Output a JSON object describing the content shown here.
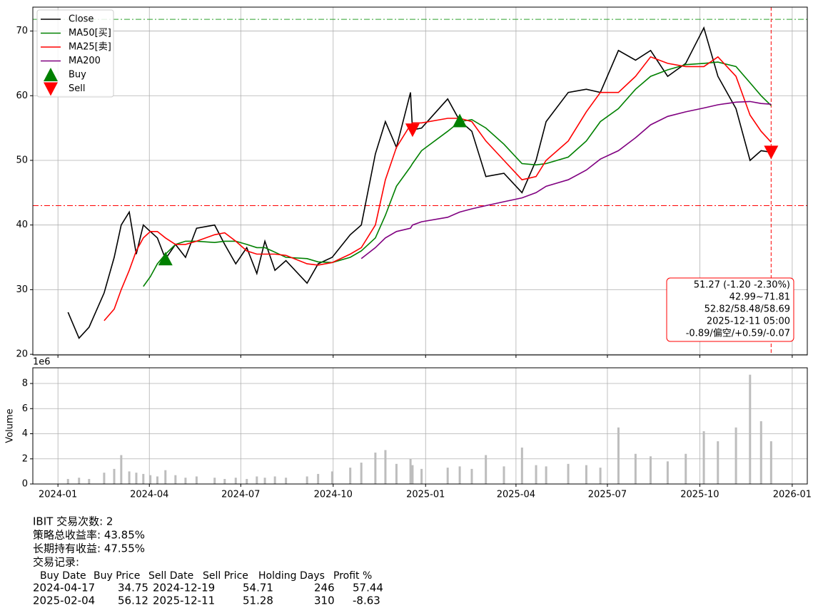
{
  "chart_data": [
    {
      "type": "line",
      "x": [
        "2024-01-11",
        "2024-01-22",
        "2024-02-01",
        "2024-02-16",
        "2024-02-26",
        "2024-03-04",
        "2024-03-12",
        "2024-03-19",
        "2024-03-26",
        "2024-04-02",
        "2024-04-09",
        "2024-04-17",
        "2024-04-27",
        "2024-05-07",
        "2024-05-18",
        "2024-06-05",
        "2024-06-15",
        "2024-06-26",
        "2024-07-07",
        "2024-07-17",
        "2024-07-25",
        "2024-08-04",
        "2024-08-15",
        "2024-09-05",
        "2024-09-16",
        "2024-09-30",
        "2024-10-18",
        "2024-10-29",
        "2024-11-12",
        "2024-11-22",
        "2024-12-03",
        "2024-12-17",
        "2024-12-19",
        "2024-12-28",
        "2025-01-23",
        "2025-02-04",
        "2025-02-16",
        "2025-03-02",
        "2025-03-20",
        "2025-04-07",
        "2025-04-21",
        "2025-05-01",
        "2025-05-23",
        "2025-06-10",
        "2025-06-24",
        "2025-07-12",
        "2025-07-29",
        "2025-08-13",
        "2025-08-30",
        "2025-09-17",
        "2025-10-05",
        "2025-10-19",
        "2025-11-06",
        "2025-11-20",
        "2025-12-01",
        "2025-12-11"
      ],
      "series": [
        {
          "name": "Close",
          "color": "#000000",
          "values": [
            26.5,
            22.5,
            24.2,
            29.5,
            35,
            40,
            42,
            35.5,
            40,
            39,
            38,
            34.75,
            37,
            35,
            39.5,
            40,
            37,
            34,
            36.5,
            32.5,
            37.5,
            33,
            34.5,
            31,
            34,
            35,
            38.5,
            40,
            51,
            56,
            52,
            60.5,
            54.71,
            55,
            59.5,
            56.12,
            54.5,
            47.5,
            48,
            45,
            50,
            56,
            60.5,
            61,
            60.5,
            67,
            65.5,
            67,
            63,
            65,
            70.5,
            63,
            58,
            50,
            51.5,
            51.27
          ]
        },
        {
          "name": "MA50[买]",
          "color": "#008000",
          "values": [
            null,
            null,
            null,
            null,
            null,
            null,
            null,
            null,
            30.5,
            32,
            34,
            35.5,
            37,
            37.5,
            37.5,
            37.3,
            37.5,
            37.5,
            37,
            36.5,
            36.5,
            35.8,
            35,
            34.8,
            34.3,
            34.2,
            35,
            36,
            38,
            41.5,
            46,
            49,
            49.5,
            51.5,
            54.5,
            56,
            56.3,
            55,
            52.5,
            49.5,
            49.3,
            49.5,
            50.5,
            53,
            56,
            58,
            61,
            63,
            64,
            64.8,
            65,
            65.2,
            64.5,
            62,
            60,
            58.48
          ]
        },
        {
          "name": "MA25[卖]",
          "color": "#ff0000",
          "values": [
            null,
            null,
            null,
            25.2,
            27,
            30,
            33,
            36,
            38,
            39,
            39,
            38,
            37,
            37,
            37.5,
            38.5,
            38.8,
            37.5,
            36,
            35.5,
            35.5,
            35.5,
            35.3,
            34,
            33.8,
            34.2,
            35.5,
            36.5,
            40,
            47,
            52,
            55.5,
            55.8,
            55.8,
            56.5,
            56.5,
            56,
            53,
            50,
            47,
            47.5,
            50,
            53,
            57.5,
            60.5,
            60.5,
            63,
            66,
            65,
            64.5,
            64.5,
            66,
            63,
            57,
            54.5,
            52.82
          ]
        },
        {
          "name": "MA200",
          "color": "#800080",
          "values": [
            null,
            null,
            null,
            null,
            null,
            null,
            null,
            null,
            null,
            null,
            null,
            null,
            null,
            null,
            null,
            null,
            null,
            null,
            null,
            null,
            null,
            null,
            null,
            null,
            null,
            null,
            null,
            34.8,
            36.5,
            38,
            39,
            39.5,
            40,
            40.5,
            41.2,
            42,
            42.5,
            43,
            43.6,
            44.2,
            45,
            46,
            47,
            48.5,
            50.2,
            51.5,
            53.5,
            55.5,
            56.8,
            57.5,
            58.1,
            58.6,
            59,
            59.1,
            58.8,
            58.69
          ]
        }
      ],
      "markers": [
        {
          "name": "Buy",
          "color": "#008000",
          "direction": "up",
          "x": [
            "2024-04-17",
            "2025-02-04"
          ],
          "values": [
            34.75,
            56.12
          ]
        },
        {
          "name": "Sell",
          "color": "#ff0000",
          "direction": "down",
          "x": [
            "2024-12-19",
            "2025-12-11"
          ],
          "values": [
            54.71,
            51.28
          ]
        }
      ],
      "hlines": [
        {
          "value": 71.81,
          "color": "#2ca02c"
        },
        {
          "value": 42.99,
          "color": "#ff0000"
        }
      ],
      "vline": {
        "x": "2025-12-11",
        "color": "#ff0000"
      },
      "annotation": [
        "51.27 (-1.20 -2.30%)",
        "42.99~71.81",
        "52.82/58.48/58.69",
        "2025-12-11 05:00",
        "-0.89/偏空/+0.59/-0.07"
      ],
      "xlim": [
        "2023-12-07",
        "2026-01-16"
      ],
      "xticks": [
        "2024-01",
        "2024-04",
        "2024-07",
        "2024-10",
        "2025-01",
        "2025-04",
        "2025-07",
        "2025-10",
        "2026-01"
      ],
      "ylim": [
        19.9,
        73.7
      ],
      "yticks": [
        20,
        30,
        40,
        50,
        60,
        70
      ],
      "grid": true,
      "legend": "upper left"
    },
    {
      "type": "bar",
      "x": [
        "2024-01-11",
        "2024-01-22",
        "2024-02-01",
        "2024-02-16",
        "2024-02-26",
        "2024-03-04",
        "2024-03-12",
        "2024-03-19",
        "2024-03-26",
        "2024-04-02",
        "2024-04-09",
        "2024-04-17",
        "2024-04-27",
        "2024-05-07",
        "2024-05-18",
        "2024-06-05",
        "2024-06-15",
        "2024-06-26",
        "2024-07-07",
        "2024-07-17",
        "2024-07-25",
        "2024-08-04",
        "2024-08-15",
        "2024-09-05",
        "2024-09-16",
        "2024-09-30",
        "2024-10-18",
        "2024-10-29",
        "2024-11-12",
        "2024-11-22",
        "2024-12-03",
        "2024-12-17",
        "2024-12-19",
        "2024-12-28",
        "2025-01-23",
        "2025-02-04",
        "2025-02-16",
        "2025-03-02",
        "2025-03-20",
        "2025-04-07",
        "2025-04-21",
        "2025-05-01",
        "2025-05-23",
        "2025-06-10",
        "2025-06-24",
        "2025-07-12",
        "2025-07-29",
        "2025-08-13",
        "2025-08-30",
        "2025-09-17",
        "2025-10-05",
        "2025-10-19",
        "2025-11-06",
        "2025-11-20",
        "2025-12-01",
        "2025-12-11"
      ],
      "values": [
        0.4,
        0.5,
        0.4,
        0.9,
        1.2,
        2.3,
        1.0,
        0.9,
        0.8,
        0.7,
        0.6,
        1.1,
        0.7,
        0.5,
        0.6,
        0.5,
        0.4,
        0.5,
        0.4,
        0.6,
        0.5,
        0.6,
        0.5,
        0.6,
        0.8,
        1.0,
        1.3,
        1.7,
        2.5,
        2.7,
        1.6,
        2.0,
        1.5,
        1.2,
        1.3,
        1.4,
        1.2,
        2.3,
        1.4,
        2.9,
        1.5,
        1.4,
        1.6,
        1.5,
        1.3,
        4.5,
        2.4,
        2.2,
        1.8,
        2.4,
        4.2,
        3.4,
        4.5,
        8.7,
        5.0,
        3.4
      ],
      "color": "#bdbdbd",
      "ylabel": "Volume",
      "offset_label": "1e6",
      "xlim": [
        "2023-12-07",
        "2026-01-16"
      ],
      "xticks": [
        "2024-01",
        "2024-04",
        "2024-07",
        "2024-10",
        "2025-01",
        "2025-04",
        "2025-07",
        "2025-10",
        "2026-01"
      ],
      "ylim": [
        0,
        9.25
      ],
      "yticks": [
        0,
        2,
        4,
        6,
        8
      ],
      "grid": true
    }
  ],
  "summary": {
    "lines": [
      "IBIT 交易次数: 2",
      "策略总收益率: 43.85%",
      "长期持有收益: 47.55%",
      "交易记录:"
    ],
    "table": {
      "columns": [
        "Buy Date",
        "Buy Price",
        "Sell Date",
        "Sell Price",
        "Holding Days",
        "Profit %"
      ],
      "rows": [
        [
          "2024-04-17",
          "34.75",
          "2024-12-19",
          "54.71",
          "246",
          "57.44"
        ],
        [
          "2025-02-04",
          "56.12",
          "2025-12-11",
          "51.28",
          "310",
          "-8.63"
        ]
      ]
    }
  }
}
